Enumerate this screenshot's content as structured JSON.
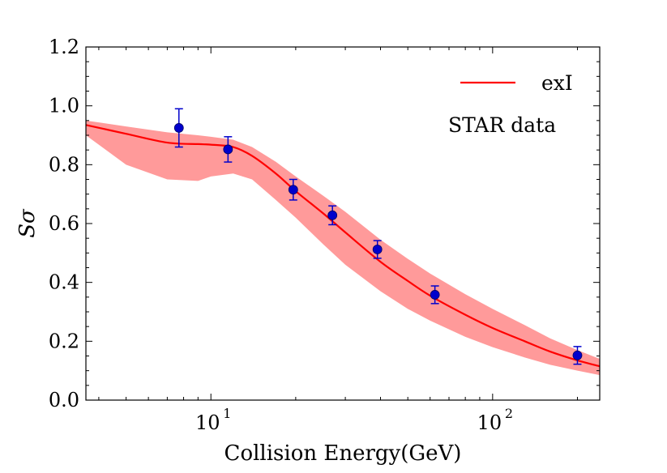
{
  "chart_data": {
    "type": "line",
    "title": "",
    "xlabel": "Collision Energy(GeV)",
    "ylabel": "Sσ",
    "xscale": "log",
    "xlim": [
      3.6,
      240
    ],
    "ylim": [
      0.0,
      1.2
    ],
    "grid": false,
    "legend_position": "top-right",
    "x_ticks": [
      {
        "value": 10,
        "label": "10",
        "exp": "1"
      },
      {
        "value": 100,
        "label": "10",
        "exp": "2"
      }
    ],
    "y_ticks": [
      "0.0",
      "0.2",
      "0.4",
      "0.6",
      "0.8",
      "1.0",
      "1.2"
    ],
    "series": [
      {
        "name": "exI",
        "kind": "line",
        "color": "#ff0000",
        "x": [
          3.6,
          5,
          7,
          9,
          10,
          12,
          14,
          17,
          20,
          25,
          30,
          40,
          50,
          60,
          80,
          100,
          130,
          160,
          200,
          240
        ],
        "y": [
          0.935,
          0.905,
          0.875,
          0.87,
          0.868,
          0.86,
          0.83,
          0.77,
          0.71,
          0.635,
          0.57,
          0.47,
          0.405,
          0.355,
          0.29,
          0.245,
          0.2,
          0.165,
          0.135,
          0.115
        ]
      },
      {
        "name": "band",
        "kind": "band",
        "color": "#ff9a9a",
        "x": [
          3.6,
          5,
          7,
          9,
          10,
          12,
          14,
          17,
          20,
          25,
          30,
          40,
          50,
          60,
          80,
          100,
          130,
          160,
          200,
          240
        ],
        "lower": [
          0.9,
          0.8,
          0.75,
          0.745,
          0.76,
          0.77,
          0.75,
          0.68,
          0.62,
          0.53,
          0.46,
          0.37,
          0.31,
          0.27,
          0.215,
          0.18,
          0.145,
          0.12,
          0.1,
          0.085
        ],
        "upper": [
          0.95,
          0.93,
          0.91,
          0.9,
          0.895,
          0.885,
          0.86,
          0.81,
          0.76,
          0.695,
          0.64,
          0.545,
          0.48,
          0.43,
          0.36,
          0.31,
          0.255,
          0.21,
          0.17,
          0.14
        ]
      },
      {
        "name": "STAR data",
        "kind": "scatter",
        "color": "#0000cc",
        "x": [
          7.7,
          11.5,
          19.6,
          27,
          39,
          62.4,
          200
        ],
        "y": [
          0.925,
          0.852,
          0.715,
          0.628,
          0.512,
          0.358,
          0.152
        ],
        "err": [
          0.065,
          0.043,
          0.035,
          0.032,
          0.03,
          0.03,
          0.03
        ]
      }
    ],
    "legend": [
      {
        "label": "exI",
        "kind": "line",
        "color": "#ff0000"
      },
      {
        "label": "STAR data",
        "kind": "text"
      }
    ]
  }
}
